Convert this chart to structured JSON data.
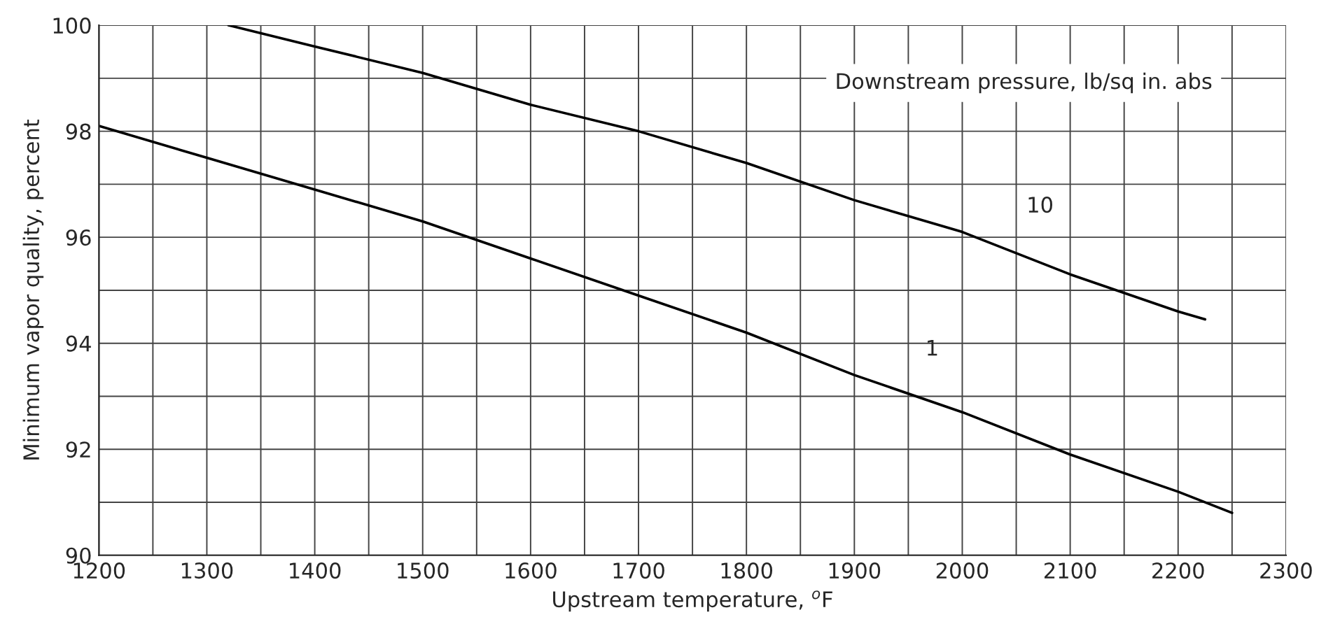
{
  "chart_data": {
    "type": "line",
    "xlabel": "Upstream temperature, $^{o}$F",
    "ylabel": "Minimum vapor quality, percent",
    "legend_title": "Downstream pressure, lb/sq in. abs",
    "series": [
      {
        "name": "10",
        "color": "#000000",
        "x": [
          1320,
          1400,
          1500,
          1600,
          1700,
          1800,
          1900,
          2000,
          2100,
          2200,
          2225
        ],
        "values": [
          100,
          99.6,
          99.1,
          98.5,
          98.0,
          97.4,
          96.7,
          96.1,
          95.3,
          94.6,
          94.45
        ]
      },
      {
        "name": "1",
        "color": "#000000",
        "x": [
          1200,
          1300,
          1400,
          1500,
          1600,
          1700,
          1800,
          1900,
          2000,
          2100,
          2200,
          2250
        ],
        "values": [
          98.1,
          97.5,
          96.9,
          96.3,
          95.6,
          94.9,
          94.2,
          93.4,
          92.7,
          91.9,
          91.2,
          90.8
        ]
      }
    ],
    "xlim": [
      1200,
      2300
    ],
    "ylim": [
      90,
      100
    ],
    "xticks": [
      1200,
      {
        "value": 1250,
        "label": null
      },
      1300,
      {
        "value": 1350,
        "label": null
      },
      1400,
      {
        "value": 1450,
        "label": null
      },
      1500,
      {
        "value": 1550,
        "label": null
      },
      1600,
      {
        "value": 1650,
        "label": null
      },
      1700,
      {
        "value": 1750,
        "label": null
      },
      1800,
      {
        "value": 1850,
        "label": null
      },
      1900,
      {
        "value": 1950,
        "label": null
      },
      2000,
      {
        "value": 2050,
        "label": null
      },
      2100,
      {
        "value": 2150,
        "label": null
      },
      2200,
      {
        "value": 2250,
        "label": null
      },
      2300
    ],
    "yticks": [
      90,
      {
        "value": 91,
        "label": null
      },
      92,
      {
        "value": 93,
        "label": null
      },
      94,
      {
        "value": 95,
        "label": null
      },
      96,
      {
        "value": 97,
        "label": null
      },
      98,
      {
        "value": 99,
        "label": null
      },
      100
    ],
    "grid": true,
    "legend": false,
    "marker": "none",
    "line_style": "solid"
  }
}
